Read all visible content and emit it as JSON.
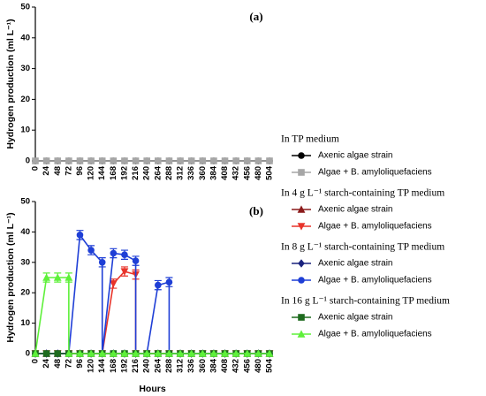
{
  "chart_data": [
    {
      "type": "line",
      "panel_label": "(a)",
      "y_label": "Hydrogen production (ml L⁻¹)",
      "ylim": [
        0,
        50
      ],
      "yticks": [
        0,
        10,
        20,
        30,
        40,
        50
      ],
      "xlim": [
        0,
        504
      ],
      "xticks": [
        0,
        24,
        48,
        72,
        96,
        120,
        144,
        168,
        192,
        216,
        240,
        264,
        288,
        312,
        336,
        360,
        384,
        408,
        432,
        456,
        480,
        504
      ],
      "series_groups": [
        {
          "title": "In TP medium",
          "series": [
            {
              "name": "Axenic algae strain",
              "color": "#000000",
              "marker": "circle",
              "x": [
                0,
                24,
                48,
                72,
                96,
                120,
                144,
                168,
                192,
                216,
                240,
                264,
                288,
                312,
                336,
                360,
                384,
                408,
                432,
                456,
                480,
                504
              ],
              "values": [
                0,
                0,
                0,
                0,
                0,
                0,
                0,
                0,
                0,
                0,
                0,
                0,
                0,
                0,
                0,
                0,
                0,
                0,
                0,
                0,
                0,
                0
              ]
            },
            {
              "name": "Algae + B. amyloliquefaciens",
              "color": "#a6a6a6",
              "marker": "square",
              "x": [
                0,
                24,
                48,
                72,
                96,
                120,
                144,
                168,
                192,
                216,
                240,
                264,
                288,
                312,
                336,
                360,
                384,
                408,
                432,
                456,
                480,
                504
              ],
              "values": [
                0,
                0,
                0,
                0,
                0,
                0,
                0,
                0,
                0,
                0,
                0,
                0,
                0,
                0,
                0,
                0,
                0,
                0,
                0,
                0,
                0,
                0
              ]
            }
          ]
        }
      ]
    },
    {
      "type": "line",
      "panel_label": "(b)",
      "y_label": "Hydrogen production (ml L⁻¹)",
      "x_label": "Hours",
      "ylim": [
        0,
        50
      ],
      "yticks": [
        0,
        10,
        20,
        30,
        40,
        50
      ],
      "xlim": [
        0,
        504
      ],
      "xticks": [
        0,
        24,
        48,
        72,
        96,
        120,
        144,
        168,
        192,
        216,
        240,
        264,
        288,
        312,
        336,
        360,
        384,
        408,
        432,
        456,
        480,
        504
      ],
      "series_groups": [
        {
          "title": "In 4 g L⁻¹ starch-containing TP medium",
          "series": [
            {
              "name": "Axenic algae strain",
              "color": "#8b1a1a",
              "marker": "triangle",
              "x": [
                0,
                24,
                48,
                72,
                96,
                120,
                144,
                168,
                192,
                216,
                240,
                264,
                288,
                312,
                336,
                360,
                384,
                408,
                432,
                456,
                480,
                504
              ],
              "values": [
                0,
                0,
                0,
                0,
                0,
                0,
                0,
                0,
                0,
                0,
                0,
                0,
                0,
                0,
                0,
                0,
                0,
                0,
                0,
                0,
                0,
                0
              ]
            },
            {
              "name": "Algae + B. amyloliquefaciens",
              "color": "#e8332a",
              "marker": "triangle-down",
              "x": [
                0,
                24,
                48,
                72,
                96,
                120,
                144,
                168,
                192,
                216,
                216,
                240,
                264,
                288,
                312,
                336,
                360,
                384,
                408,
                432,
                456,
                480,
                504
              ],
              "values": [
                0,
                0,
                0,
                0,
                0,
                0,
                0,
                23,
                27,
                26,
                0,
                0,
                0,
                0,
                0,
                0,
                0,
                0,
                0,
                0,
                0,
                0,
                0
              ],
              "errors": [
                null,
                null,
                null,
                null,
                null,
                null,
                null,
                1.5,
                1.5,
                1.5,
                null,
                null,
                null,
                null,
                null,
                null,
                null,
                null,
                null,
                null,
                null,
                null,
                null
              ]
            }
          ]
        },
        {
          "title": "In 8 g L⁻¹ starch-containing TP medium",
          "series": [
            {
              "name": "Axenic algae strain",
              "color": "#1a237e",
              "marker": "diamond",
              "x": [
                0,
                24,
                48,
                72,
                96,
                120,
                144,
                168,
                192,
                216,
                240,
                264,
                288,
                312,
                336,
                360,
                384,
                408,
                432,
                456,
                480,
                504
              ],
              "values": [
                0,
                0,
                0,
                0,
                0,
                0,
                0,
                0,
                0,
                0,
                0,
                0,
                0,
                0,
                0,
                0,
                0,
                0,
                0,
                0,
                0,
                0
              ]
            },
            {
              "name": "Algae + B. amyloliquefaciens",
              "color": "#1f3fd6",
              "marker": "circle",
              "x": [
                0,
                24,
                48,
                72,
                96,
                120,
                144,
                144,
                168,
                192,
                216,
                216,
                240,
                264,
                288,
                288,
                312,
                336,
                360,
                384,
                408,
                432,
                456,
                480,
                504
              ],
              "values": [
                0,
                0,
                0,
                0,
                39,
                34,
                30,
                0,
                33,
                32.5,
                30.5,
                0,
                0,
                22.5,
                23.5,
                0,
                0,
                0,
                0,
                0,
                0,
                0,
                0,
                0,
                0
              ],
              "errors": [
                null,
                null,
                null,
                null,
                1.5,
                1.5,
                1.5,
                null,
                1.5,
                1.5,
                1.5,
                null,
                null,
                1.5,
                1.5,
                null,
                null,
                null,
                null,
                null,
                null,
                null,
                null,
                null,
                null
              ]
            }
          ]
        },
        {
          "title": "In 16 g L⁻¹ starch-containing TP medium",
          "series": [
            {
              "name": "Axenic algae strain",
              "color": "#1e6b1e",
              "marker": "square",
              "x": [
                0,
                24,
                48,
                72,
                96,
                120,
                144,
                168,
                192,
                216,
                240,
                264,
                288,
                312,
                336,
                360,
                384,
                408,
                432,
                456,
                480,
                504
              ],
              "values": [
                0,
                0,
                0,
                0,
                0,
                0,
                0,
                0,
                0,
                0,
                0,
                0,
                0,
                0,
                0,
                0,
                0,
                0,
                0,
                0,
                0,
                0
              ]
            },
            {
              "name": "Algae + B. amyloliquefaciens",
              "color": "#5ef03a",
              "marker": "triangle",
              "x": [
                0,
                24,
                48,
                72,
                72,
                96,
                120,
                144,
                168,
                192,
                216,
                240,
                264,
                288,
                312,
                336,
                360,
                384,
                408,
                432,
                456,
                480,
                504
              ],
              "values": [
                0,
                25,
                25,
                25,
                0,
                0,
                0,
                0,
                0,
                0,
                0,
                0,
                0,
                0,
                0,
                0,
                0,
                0,
                0,
                0,
                0,
                0,
                0
              ],
              "errors": [
                null,
                1.5,
                1.5,
                1.5,
                null,
                null,
                null,
                null,
                null,
                null,
                null,
                null,
                null,
                null,
                null,
                null,
                null,
                null,
                null,
                null,
                null,
                null,
                null
              ]
            }
          ]
        }
      ]
    }
  ]
}
